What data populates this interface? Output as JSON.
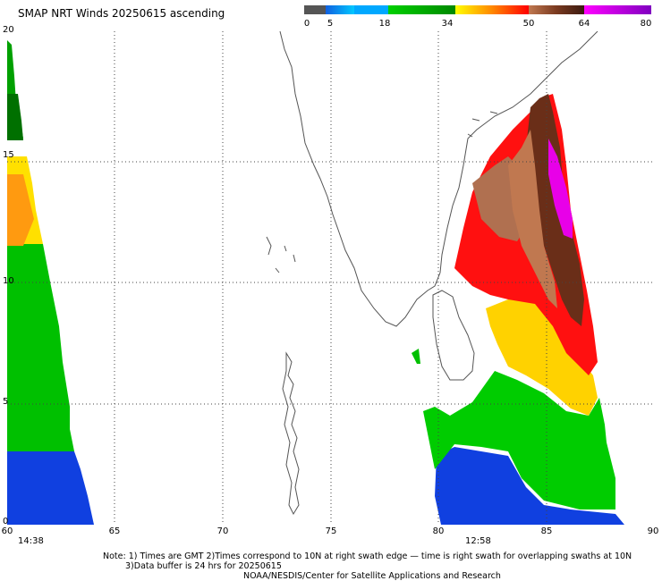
{
  "title": "SMAP NRT Winds 20250615 ascending",
  "legend": {
    "ticks": [
      "0",
      "5",
      "18",
      "34",
      "50",
      "64",
      "80"
    ],
    "colors": [
      "#555555",
      "#1478d8",
      "#00b4ff",
      "#00d000",
      "#008800",
      "#ffff00",
      "#ff8800",
      "#ff0000",
      "#a05a3a",
      "#c87e5a",
      "#ff00ff",
      "#8000c0"
    ]
  },
  "axes": {
    "x_ticks": [
      "60",
      "65",
      "70",
      "75",
      "80",
      "85",
      "90"
    ],
    "y_ticks": [
      "20",
      "15",
      "10",
      "5",
      "0"
    ]
  },
  "swath_times": {
    "left": "14:38",
    "right": "12:58"
  },
  "notes": {
    "line1": "Note: 1) Times are GMT 2)Times correspond to 10N at right swath edge — time is right swath for overlapping swaths at 10N",
    "line2": "3)Data buffer is 24 hrs for 20250615",
    "line3": "NOAA/NESDIS/Center for Satellite Applications and Research"
  }
}
